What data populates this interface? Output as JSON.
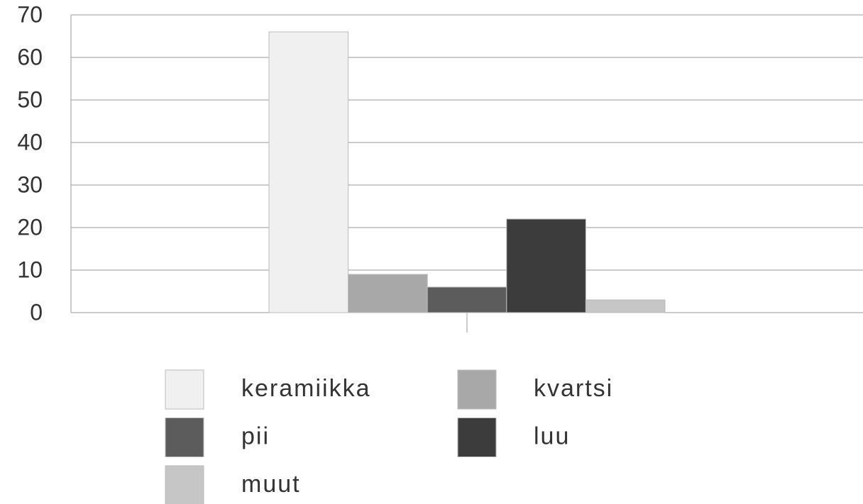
{
  "chart_data": {
    "type": "bar",
    "categories": [
      null
    ],
    "series": [
      {
        "name": "keramiikka",
        "color": "#f0f0f0",
        "values": [
          66
        ]
      },
      {
        "name": "kvartsi",
        "color": "#a8a8a8",
        "values": [
          9
        ]
      },
      {
        "name": "pii",
        "color": "#5c5c5c",
        "values": [
          6
        ]
      },
      {
        "name": "luu",
        "color": "#3c3c3c",
        "values": [
          22
        ]
      },
      {
        "name": "muut",
        "color": "#c6c6c6",
        "values": [
          3
        ]
      }
    ],
    "ylim": [
      0,
      70
    ],
    "yticks": [
      0,
      10,
      20,
      30,
      40,
      50,
      60,
      70
    ],
    "grid": true,
    "legend": "bottom"
  }
}
